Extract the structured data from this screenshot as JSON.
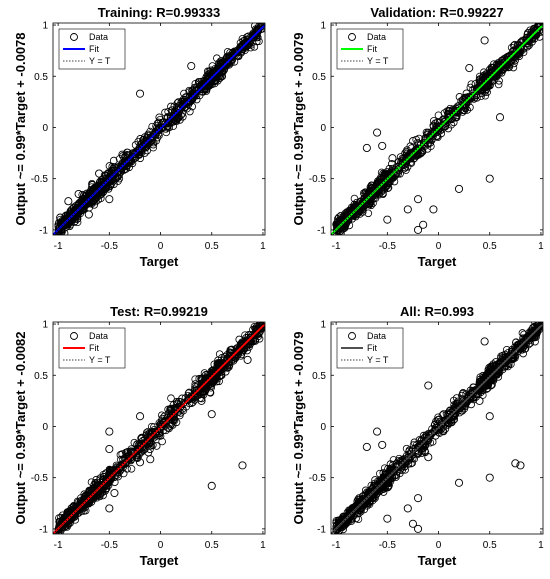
{
  "colors": {
    "data_marker": "#000000",
    "ref_line": "#000000",
    "background": "#ffffff"
  },
  "chart_data": [
    {
      "type": "scatter",
      "title": "Training: R=0.99333",
      "xlabel": "Target",
      "ylabel": "Output ~= 0.99*Target + -0.0078",
      "xlim": [
        -1.05,
        1.02
      ],
      "ylim": [
        -1.05,
        1.02
      ],
      "xticks": [
        -1,
        -0.5,
        0,
        0.5,
        1
      ],
      "yticks": [
        -1,
        -0.5,
        0,
        0.5,
        1
      ],
      "grid": false,
      "legend": [
        "Data",
        "Fit",
        "Y = T"
      ],
      "legend_placement": "top-left",
      "fit": {
        "slope": 0.99,
        "intercept": -0.0078,
        "color": "#0000ff"
      },
      "series": [
        {
          "name": "Data",
          "points": [
            [
              -0.95,
              -0.96
            ],
            [
              -0.9,
              -0.88
            ],
            [
              -0.85,
              -0.86
            ],
            [
              -0.8,
              -0.79
            ],
            [
              -0.75,
              -0.76
            ],
            [
              -0.7,
              -0.71
            ],
            [
              -0.65,
              -0.64
            ],
            [
              -0.6,
              -0.62
            ],
            [
              -0.55,
              -0.55
            ],
            [
              -0.5,
              -0.51
            ],
            [
              -0.45,
              -0.45
            ],
            [
              -0.4,
              -0.42
            ],
            [
              -0.35,
              -0.34
            ],
            [
              -0.3,
              -0.31
            ],
            [
              -0.25,
              -0.26
            ],
            [
              -0.2,
              -0.2
            ],
            [
              -0.15,
              -0.16
            ],
            [
              -0.1,
              -0.1
            ],
            [
              -0.05,
              -0.06
            ],
            [
              0.0,
              -0.01
            ],
            [
              0.05,
              0.04
            ],
            [
              0.1,
              0.09
            ],
            [
              0.15,
              0.15
            ],
            [
              0.2,
              0.19
            ],
            [
              0.25,
              0.25
            ],
            [
              0.3,
              0.29
            ],
            [
              0.35,
              0.35
            ],
            [
              0.4,
              0.39
            ],
            [
              0.45,
              0.45
            ],
            [
              0.5,
              0.49
            ],
            [
              0.55,
              0.55
            ],
            [
              0.6,
              0.59
            ],
            [
              0.65,
              0.64
            ],
            [
              0.7,
              0.69
            ],
            [
              0.75,
              0.75
            ],
            [
              0.8,
              0.79
            ],
            [
              0.85,
              0.84
            ],
            [
              0.9,
              0.89
            ],
            [
              0.95,
              0.94
            ],
            [
              -0.6,
              -0.45
            ],
            [
              -0.8,
              -0.65
            ],
            [
              -0.7,
              -0.85
            ],
            [
              -0.5,
              -0.7
            ],
            [
              -0.2,
              0.33
            ],
            [
              0.3,
              0.6
            ],
            [
              0.6,
              0.5
            ],
            [
              -0.9,
              -0.72
            ],
            [
              -0.98,
              -0.88
            ]
          ]
        }
      ]
    },
    {
      "type": "scatter",
      "title": "Validation: R=0.99227",
      "xlabel": "Target",
      "ylabel": "Output ~= 0.99*Target + -0.0079",
      "xlim": [
        -1.05,
        1.02
      ],
      "ylim": [
        -1.05,
        1.02
      ],
      "xticks": [
        -1,
        -0.5,
        0,
        0.5,
        1
      ],
      "yticks": [
        -1,
        -0.5,
        0,
        0.5,
        1
      ],
      "grid": false,
      "legend": [
        "Data",
        "Fit",
        "Y = T"
      ],
      "legend_placement": "top-left",
      "fit": {
        "slope": 0.99,
        "intercept": -0.0079,
        "color": "#00ff00"
      },
      "series": [
        {
          "name": "Data",
          "points": [
            [
              -0.95,
              -0.96
            ],
            [
              -0.9,
              -0.9
            ],
            [
              -0.8,
              -0.81
            ],
            [
              -0.7,
              -0.7
            ],
            [
              -0.6,
              -0.61
            ],
            [
              -0.5,
              -0.5
            ],
            [
              -0.4,
              -0.41
            ],
            [
              -0.3,
              -0.3
            ],
            [
              -0.2,
              -0.21
            ],
            [
              -0.1,
              -0.1
            ],
            [
              0.0,
              -0.01
            ],
            [
              0.1,
              0.09
            ],
            [
              0.2,
              0.19
            ],
            [
              0.3,
              0.3
            ],
            [
              0.4,
              0.39
            ],
            [
              0.5,
              0.5
            ],
            [
              0.6,
              0.59
            ],
            [
              0.7,
              0.7
            ],
            [
              0.8,
              0.79
            ],
            [
              0.9,
              0.89
            ],
            [
              0.95,
              0.95
            ],
            [
              -0.55,
              -0.18
            ],
            [
              -0.6,
              -0.05
            ],
            [
              -0.45,
              -0.3
            ],
            [
              -0.3,
              -0.8
            ],
            [
              -0.2,
              -0.7
            ],
            [
              -0.5,
              -0.9
            ],
            [
              -0.2,
              -1.0
            ],
            [
              -0.7,
              -0.2
            ],
            [
              -0.05,
              -0.8
            ],
            [
              0.2,
              -0.6
            ],
            [
              0.5,
              -0.5
            ],
            [
              0.6,
              0.1
            ],
            [
              0.45,
              0.85
            ],
            [
              0.3,
              0.58
            ],
            [
              -0.15,
              -0.95
            ]
          ]
        }
      ]
    },
    {
      "type": "scatter",
      "title": "Test: R=0.99219",
      "xlabel": "Target",
      "ylabel": "Output ~= 0.99*Target + -0.0082",
      "xlim": [
        -1.05,
        1.02
      ],
      "ylim": [
        -1.05,
        1.02
      ],
      "xticks": [
        -1,
        -0.5,
        0,
        0.5,
        1
      ],
      "yticks": [
        -1,
        -0.5,
        0,
        0.5,
        1
      ],
      "grid": false,
      "legend": [
        "Data",
        "Fit",
        "Y = T"
      ],
      "legend_placement": "top-left",
      "fit": {
        "slope": 0.99,
        "intercept": -0.0082,
        "color": "#ff0000"
      },
      "series": [
        {
          "name": "Data",
          "points": [
            [
              -0.95,
              -0.96
            ],
            [
              -0.9,
              -0.89
            ],
            [
              -0.8,
              -0.8
            ],
            [
              -0.7,
              -0.71
            ],
            [
              -0.6,
              -0.6
            ],
            [
              -0.5,
              -0.51
            ],
            [
              -0.4,
              -0.4
            ],
            [
              -0.3,
              -0.31
            ],
            [
              -0.2,
              -0.2
            ],
            [
              -0.1,
              -0.11
            ],
            [
              0.0,
              0.0
            ],
            [
              0.1,
              0.09
            ],
            [
              0.2,
              0.2
            ],
            [
              0.3,
              0.29
            ],
            [
              0.4,
              0.4
            ],
            [
              0.5,
              0.49
            ],
            [
              0.6,
              0.6
            ],
            [
              0.7,
              0.69
            ],
            [
              0.8,
              0.8
            ],
            [
              0.9,
              0.89
            ],
            [
              -0.2,
              0.1
            ],
            [
              -0.1,
              -0.32
            ],
            [
              0.4,
              0.25
            ],
            [
              0.5,
              -0.58
            ],
            [
              0.8,
              -0.38
            ],
            [
              -0.5,
              -0.22
            ],
            [
              -0.5,
              -0.05
            ],
            [
              0.85,
              0.65
            ],
            [
              0.5,
              0.12
            ],
            [
              -0.2,
              -0.35
            ],
            [
              -0.5,
              -0.8
            ],
            [
              -0.45,
              -0.65
            ]
          ]
        }
      ]
    },
    {
      "type": "scatter",
      "title": "All: R=0.993",
      "xlabel": "Target",
      "ylabel": "Output ~= 0.99*Target + -0.0079",
      "xlim": [
        -1.05,
        1.02
      ],
      "ylim": [
        -1.05,
        1.02
      ],
      "xticks": [
        -1,
        -0.5,
        0,
        0.5,
        1
      ],
      "yticks": [
        -1,
        -0.5,
        0,
        0.5,
        1
      ],
      "grid": false,
      "legend": [
        "Data",
        "Fit",
        "Y = T"
      ],
      "legend_placement": "top-left",
      "fit": {
        "slope": 0.99,
        "intercept": -0.0079,
        "color": "#505050"
      },
      "series": [
        {
          "name": "Data",
          "points": [
            [
              -0.95,
              -0.96
            ],
            [
              -0.9,
              -0.9
            ],
            [
              -0.8,
              -0.8
            ],
            [
              -0.7,
              -0.71
            ],
            [
              -0.6,
              -0.6
            ],
            [
              -0.5,
              -0.51
            ],
            [
              -0.4,
              -0.4
            ],
            [
              -0.3,
              -0.31
            ],
            [
              -0.2,
              -0.2
            ],
            [
              -0.1,
              -0.11
            ],
            [
              0.0,
              0.0
            ],
            [
              0.1,
              0.09
            ],
            [
              0.2,
              0.2
            ],
            [
              0.3,
              0.29
            ],
            [
              0.4,
              0.4
            ],
            [
              0.5,
              0.49
            ],
            [
              0.6,
              0.6
            ],
            [
              0.7,
              0.69
            ],
            [
              0.8,
              0.8
            ],
            [
              0.9,
              0.89
            ],
            [
              -0.55,
              -0.18
            ],
            [
              -0.6,
              -0.05
            ],
            [
              -0.3,
              -0.8
            ],
            [
              -0.2,
              -0.7
            ],
            [
              -0.2,
              -1.0
            ],
            [
              0.2,
              -0.55
            ],
            [
              0.5,
              -0.5
            ],
            [
              0.8,
              -0.38
            ],
            [
              0.75,
              -0.36
            ],
            [
              -0.1,
              -0.3
            ],
            [
              0.4,
              0.25
            ],
            [
              0.5,
              0.1
            ],
            [
              0.45,
              0.83
            ],
            [
              -0.1,
              0.4
            ],
            [
              -0.7,
              -0.2
            ],
            [
              -0.5,
              -0.9
            ],
            [
              -0.25,
              -0.95
            ]
          ]
        }
      ]
    }
  ]
}
